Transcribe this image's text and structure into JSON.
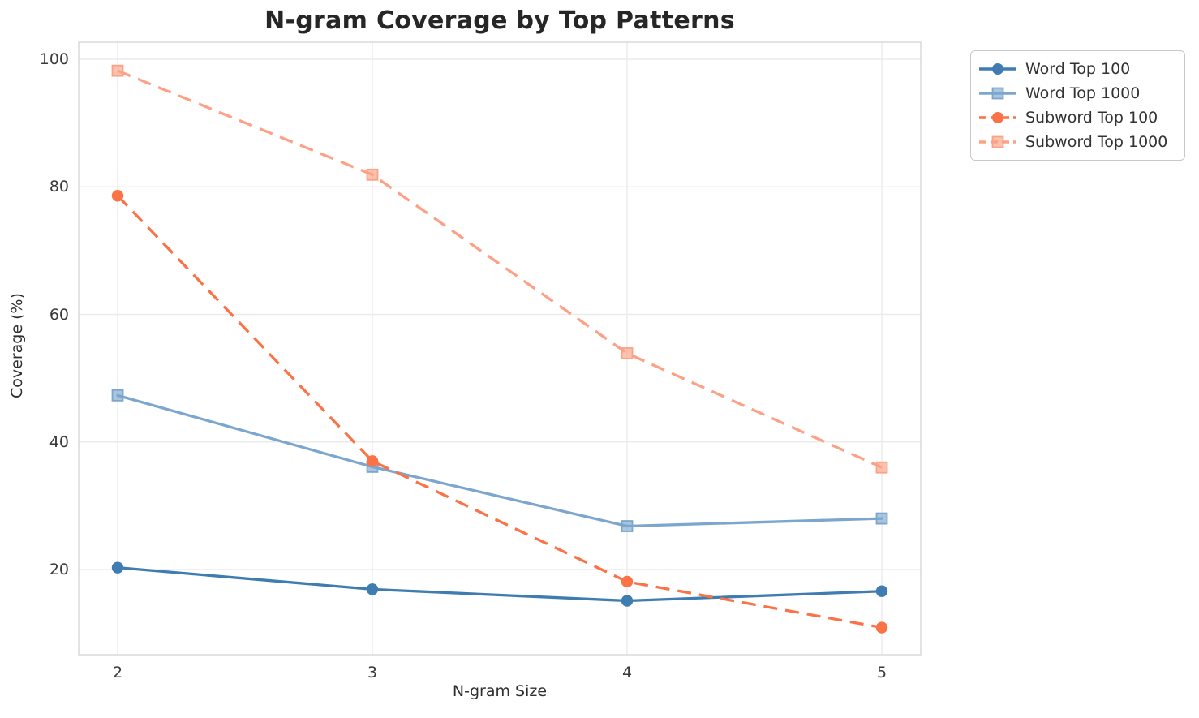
{
  "chart_data": {
    "type": "line",
    "title": "N-gram Coverage by Top Patterns",
    "xlabel": "N-gram Size",
    "ylabel": "Coverage (%)",
    "x": [
      2,
      3,
      4,
      5
    ],
    "xtick_labels": [
      "2",
      "3",
      "4",
      "5"
    ],
    "yticks": [
      20,
      40,
      60,
      80,
      100
    ],
    "ylim": [
      6.6,
      102.7
    ],
    "grid": true,
    "legend_position": "outside-top-right",
    "colors": {
      "grid": "#ebebeb",
      "spine": "#d4d4d4",
      "text": "#3a3a3a"
    },
    "series": [
      {
        "name": "Word Top 100",
        "color": "#3e7cb1",
        "marker": "circle",
        "line_style": "solid",
        "values": [
          20.3,
          16.9,
          15.1,
          16.6
        ]
      },
      {
        "name": "Word Top 1000",
        "color": "#7ca6ce",
        "marker": "square",
        "line_style": "solid",
        "values": [
          47.3,
          36.1,
          26.8,
          28.0
        ]
      },
      {
        "name": "Subword Top 100",
        "color": "#fb7246",
        "marker": "circle",
        "line_style": "dashed",
        "values": [
          78.6,
          37.0,
          18.1,
          10.9
        ]
      },
      {
        "name": "Subword Top 1000",
        "color": "#fda186",
        "marker": "square",
        "line_style": "dashed",
        "values": [
          98.2,
          81.9,
          53.9,
          36.0
        ]
      }
    ]
  }
}
